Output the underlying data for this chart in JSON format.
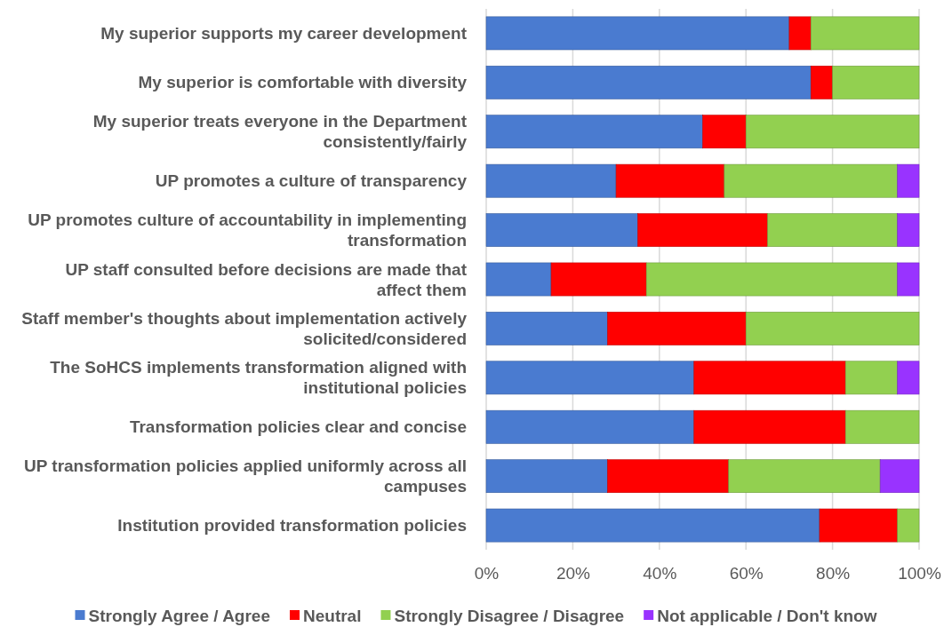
{
  "chart_data": {
    "type": "bar",
    "orientation": "horizontal",
    "stacked": true,
    "categories": [
      "My superior supports my career development",
      "My superior is comfortable with diversity",
      "My superior treats everyone in the Department consistently/fairly",
      "UP promotes a culture of transparency",
      "UP promotes culture of accountability in implementing transformation",
      "UP staff consulted before decisions are made that affect them",
      "Staff member's thoughts about implementation actively solicited/considered",
      "The SoHCS implements transformation aligned with institutional policies",
      "Transformation policies clear and concise",
      "UP transformation policies applied uniformly across all campuses",
      "Institution provided transformation policies"
    ],
    "series": [
      {
        "name": "Strongly Agree / Agree",
        "color": "#4a7bd0",
        "values": [
          70,
          75,
          50,
          30,
          35,
          15,
          28,
          48,
          48,
          28,
          77
        ]
      },
      {
        "name": "Neutral",
        "color": "#ff0000",
        "values": [
          5,
          5,
          10,
          25,
          30,
          22,
          32,
          35,
          35,
          28,
          18
        ]
      },
      {
        "name": "Strongly Disagree / Disagree",
        "color": "#92d050",
        "values": [
          25,
          20,
          40,
          40,
          30,
          58,
          40,
          12,
          17,
          35,
          5
        ]
      },
      {
        "name": "Not applicable / Don't know",
        "color": "#9933ff",
        "values": [
          0,
          0,
          0,
          5,
          5,
          5,
          0,
          5,
          0,
          9,
          0
        ]
      }
    ],
    "xlim": [
      0,
      100
    ],
    "xticks": [
      {
        "value": 0,
        "label": "0%"
      },
      {
        "value": 20,
        "label": "20%"
      },
      {
        "value": 40,
        "label": "40%"
      },
      {
        "value": 60,
        "label": "60%"
      },
      {
        "value": 80,
        "label": "80%"
      },
      {
        "value": 100,
        "label": "100%"
      }
    ],
    "grid": "x",
    "legend": "bottom"
  }
}
